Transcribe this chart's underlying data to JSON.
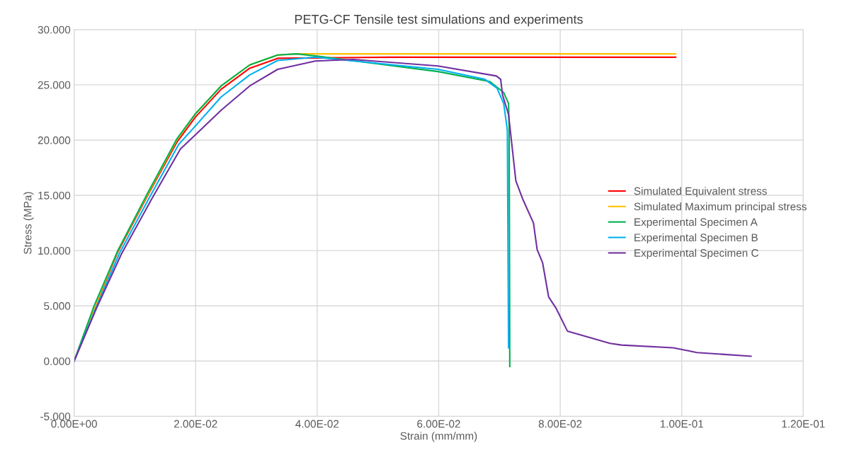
{
  "chart_data": {
    "type": "line",
    "title": "PETG-CF Tensile test simulations and experiments",
    "xlabel": "Strain (mm/mm)",
    "ylabel": "Stress (MPa)",
    "xlim": [
      0,
      0.12
    ],
    "xticks": [
      {
        "value": 0,
        "label": "0.00E+00"
      },
      {
        "value": 0.02,
        "label": "2.00E-02"
      },
      {
        "value": 0.04,
        "label": "4.00E-02"
      },
      {
        "value": 0.06,
        "label": "6.00E-02"
      },
      {
        "value": 0.08,
        "label": "8.00E-02"
      },
      {
        "value": 0.1,
        "label": "1.00E-01"
      },
      {
        "value": 0.12,
        "label": "1.20E-01"
      }
    ],
    "ylim": [
      -5,
      30
    ],
    "yticks": [
      {
        "value": -5,
        "label": "-5.000"
      },
      {
        "value": 0,
        "label": "0.000"
      },
      {
        "value": 5,
        "label": "5.000"
      },
      {
        "value": 10,
        "label": "10.000"
      },
      {
        "value": 15,
        "label": "15.000"
      },
      {
        "value": 20,
        "label": "20.000"
      },
      {
        "value": 25,
        "label": "25.000"
      },
      {
        "value": 30,
        "label": "30.000"
      }
    ],
    "grid": true,
    "legend": "right",
    "marker": "none",
    "line_style": "solid",
    "series": [
      {
        "name": "Simulated Equivalent stress",
        "color": "#ff0000",
        "x": [
          0,
          0.0034,
          0.0072,
          0.0122,
          0.0169,
          0.02,
          0.0242,
          0.0289,
          0.0335,
          0.052,
          0.099
        ],
        "values": [
          0,
          4.8,
          9.9,
          15.1,
          19.8,
          22.1,
          24.6,
          26.5,
          27.4,
          27.5,
          27.5
        ]
      },
      {
        "name": "Simulated Maximum principal stress",
        "color": "#ffc000",
        "x": [
          0,
          0.0034,
          0.0072,
          0.0122,
          0.0169,
          0.02,
          0.0242,
          0.0289,
          0.0335,
          0.0366,
          0.099
        ],
        "values": [
          0,
          4.9,
          10.0,
          15.2,
          20.0,
          22.4,
          24.9,
          26.8,
          27.7,
          27.8,
          27.8
        ]
      },
      {
        "name": "Experimental Specimen A",
        "color": "#00b050",
        "x": [
          0,
          0.0033,
          0.0072,
          0.0122,
          0.0169,
          0.02,
          0.0242,
          0.0289,
          0.0335,
          0.0366,
          0.04,
          0.0599,
          0.0684,
          0.0707,
          0.0715,
          0.0716,
          0.0717
        ],
        "values": [
          0,
          5.0,
          10.0,
          15.3,
          20.1,
          22.4,
          24.9,
          26.8,
          27.7,
          27.8,
          27.6,
          26.2,
          25.3,
          24.3,
          23.3,
          20.9,
          -0.5
        ]
      },
      {
        "name": "Experimental Specimen B",
        "color": "#00b0f0",
        "x": [
          0,
          0.0036,
          0.0075,
          0.0125,
          0.0172,
          0.02,
          0.0242,
          0.0289,
          0.0335,
          0.0397,
          0.0599,
          0.0676,
          0.0696,
          0.0707,
          0.0713,
          0.0715
        ],
        "values": [
          0,
          4.8,
          9.8,
          14.9,
          19.6,
          21.3,
          23.9,
          25.9,
          27.2,
          27.5,
          26.4,
          25.5,
          24.7,
          23.3,
          20.9,
          1.2
        ]
      },
      {
        "name": "Experimental Specimen C",
        "color": "#7030a0",
        "x": [
          0,
          0.0037,
          0.0078,
          0.0128,
          0.0175,
          0.02,
          0.0242,
          0.0289,
          0.0335,
          0.0397,
          0.0459,
          0.0599,
          0.0695,
          0.0702,
          0.0705,
          0.0715,
          0.0727,
          0.0738,
          0.0756,
          0.0762,
          0.0771,
          0.0781,
          0.0793,
          0.0812,
          0.0882,
          0.0901,
          0.0986,
          0.1014,
          0.1025,
          0.1114
        ],
        "values": [
          0,
          4.8,
          9.7,
          14.7,
          19.2,
          20.5,
          22.7,
          24.9,
          26.4,
          27.15,
          27.3,
          26.7,
          25.8,
          25.5,
          24.1,
          22.3,
          16.3,
          14.7,
          12.5,
          10.1,
          8.9,
          5.8,
          4.8,
          2.7,
          1.6,
          1.45,
          1.2,
          0.9,
          0.77,
          0.44
        ]
      }
    ]
  }
}
